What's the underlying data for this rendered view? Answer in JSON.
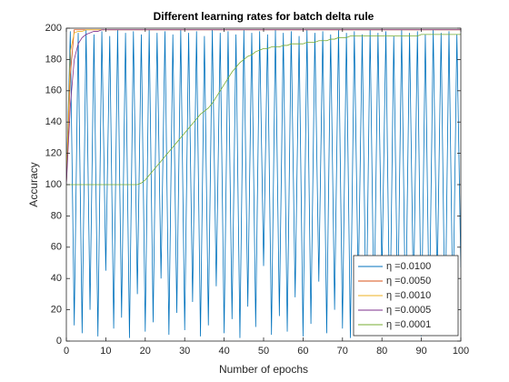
{
  "chart_data": {
    "type": "line",
    "title": "Different learning rates for batch delta rule",
    "xlabel": "Number of epochs",
    "ylabel": "Accuracy",
    "x": [
      0,
      1,
      2,
      3,
      4,
      5,
      6,
      7,
      8,
      9,
      10,
      11,
      12,
      13,
      14,
      15,
      16,
      17,
      18,
      19,
      20,
      21,
      22,
      23,
      24,
      25,
      26,
      27,
      28,
      29,
      30,
      31,
      32,
      33,
      34,
      35,
      36,
      37,
      38,
      39,
      40,
      41,
      42,
      43,
      44,
      45,
      46,
      47,
      48,
      49,
      50,
      51,
      52,
      53,
      54,
      55,
      56,
      57,
      58,
      59,
      60,
      61,
      62,
      63,
      64,
      65,
      66,
      67,
      68,
      69,
      70,
      71,
      72,
      73,
      74,
      75,
      76,
      77,
      78,
      79,
      80,
      81,
      82,
      83,
      84,
      85,
      86,
      87,
      88,
      89,
      90,
      91,
      92,
      93,
      94,
      95,
      96,
      97,
      98,
      99,
      100
    ],
    "series": [
      {
        "name": "η =0.0100",
        "color": "#0072BD",
        "values": [
          100,
          198,
          10,
          197,
          5,
          199,
          20,
          196,
          3,
          198,
          45,
          195,
          8,
          199,
          15,
          197,
          2,
          198,
          30,
          196,
          6,
          199,
          12,
          197,
          40,
          198,
          4,
          196,
          18,
          199,
          7,
          197,
          25,
          198,
          3,
          195,
          10,
          199,
          35,
          197,
          5,
          198,
          14,
          196,
          2,
          199,
          22,
          197,
          9,
          198,
          48,
          196,
          4,
          199,
          16,
          197,
          6,
          198,
          28,
          195,
          3,
          199,
          11,
          197,
          38,
          198,
          5,
          196,
          20,
          199,
          8,
          197,
          2,
          198,
          32,
          196,
          6,
          199,
          13,
          197,
          42,
          198,
          4,
          195,
          17,
          199,
          7,
          197,
          26,
          198,
          3,
          196,
          10,
          199,
          36,
          197,
          5,
          198,
          15,
          196,
          47
        ]
      },
      {
        "name": "η =0.0050",
        "color": "#D95319",
        "values": [
          100,
          170,
          199,
          199,
          199,
          199,
          199,
          199,
          199,
          199,
          199,
          199,
          199,
          199,
          199,
          199,
          199,
          199,
          199,
          199,
          199,
          199,
          199,
          199,
          199,
          199,
          199,
          199,
          199,
          199,
          199,
          199,
          199,
          199,
          199,
          199,
          199,
          199,
          199,
          199,
          199,
          199,
          199,
          199,
          199,
          199,
          199,
          199,
          199,
          199,
          199,
          199,
          199,
          199,
          199,
          199,
          199,
          199,
          199,
          199,
          199,
          199,
          199,
          199,
          199,
          199,
          199,
          199,
          199,
          199,
          199,
          199,
          199,
          199,
          199,
          199,
          199,
          199,
          199,
          199,
          199,
          199,
          199,
          199,
          199,
          199,
          199,
          199,
          199,
          199,
          199,
          199,
          199,
          199,
          199,
          199,
          199,
          199,
          199,
          199,
          199
        ]
      },
      {
        "name": "η =0.0010",
        "color": "#EDB120",
        "values": [
          100,
          185,
          197,
          198,
          198,
          199,
          199,
          199,
          199,
          199,
          199,
          199,
          199,
          199,
          199,
          199,
          199,
          199,
          199,
          199,
          199,
          199,
          199,
          199,
          199,
          199,
          199,
          199,
          199,
          199,
          199,
          199,
          199,
          199,
          199,
          199,
          199,
          199,
          199,
          199,
          199,
          199,
          199,
          199,
          199,
          199,
          199,
          199,
          199,
          199,
          199,
          199,
          199,
          199,
          199,
          199,
          199,
          199,
          199,
          199,
          199,
          199,
          199,
          199,
          199,
          199,
          199,
          199,
          199,
          199,
          199,
          199,
          199,
          199,
          199,
          199,
          199,
          199,
          199,
          199,
          199,
          199,
          199,
          199,
          199,
          199,
          199,
          199,
          199,
          199,
          199,
          199,
          199,
          199,
          199,
          199,
          199,
          199,
          199,
          199,
          199
        ]
      },
      {
        "name": "η =0.0005",
        "color": "#7E2F8E",
        "values": [
          100,
          150,
          180,
          190,
          194,
          196,
          197,
          198,
          198,
          199,
          199,
          199,
          199,
          199,
          199,
          199,
          199,
          199,
          199,
          199,
          199,
          199,
          199,
          199,
          199,
          199,
          199,
          199,
          199,
          199,
          199,
          199,
          199,
          199,
          199,
          199,
          199,
          199,
          199,
          199,
          199,
          199,
          199,
          199,
          199,
          199,
          199,
          199,
          199,
          199,
          199,
          199,
          199,
          199,
          199,
          199,
          199,
          199,
          199,
          199,
          199,
          199,
          199,
          199,
          199,
          199,
          199,
          199,
          199,
          199,
          199,
          199,
          199,
          199,
          199,
          199,
          199,
          199,
          199,
          199,
          199,
          199,
          199,
          199,
          199,
          199,
          199,
          199,
          199,
          199,
          199,
          199,
          199,
          199,
          199,
          199,
          199,
          199,
          199,
          199,
          199
        ]
      },
      {
        "name": "η =0.0001",
        "color": "#77AC30",
        "values": [
          100,
          100,
          100,
          100,
          100,
          100,
          100,
          100,
          100,
          100,
          100,
          100,
          100,
          100,
          100,
          100,
          100,
          100,
          100,
          101,
          103,
          106,
          109,
          112,
          115,
          118,
          121,
          124,
          127,
          130,
          133,
          136,
          139,
          142,
          145,
          147,
          149,
          152,
          156,
          160,
          164,
          168,
          172,
          175,
          178,
          180,
          182,
          183,
          185,
          186,
          187,
          187,
          188,
          188,
          188,
          189,
          189,
          190,
          190,
          190,
          190,
          191,
          191,
          191,
          192,
          192,
          192,
          193,
          193,
          194,
          194,
          194,
          195,
          195,
          195,
          195,
          195,
          195,
          195,
          195,
          195,
          195,
          195,
          195,
          195,
          195,
          195,
          195,
          195,
          195,
          196,
          196,
          196,
          196,
          196,
          196,
          196,
          196,
          196,
          196,
          196
        ]
      }
    ],
    "xlim": [
      0,
      100
    ],
    "xticks": [
      0,
      10,
      20,
      30,
      40,
      50,
      60,
      70,
      80,
      90,
      100
    ],
    "ylim": [
      0,
      200
    ],
    "yticks": [
      0,
      20,
      40,
      60,
      80,
      100,
      120,
      140,
      160,
      180,
      200
    ],
    "legend": "southeast"
  }
}
